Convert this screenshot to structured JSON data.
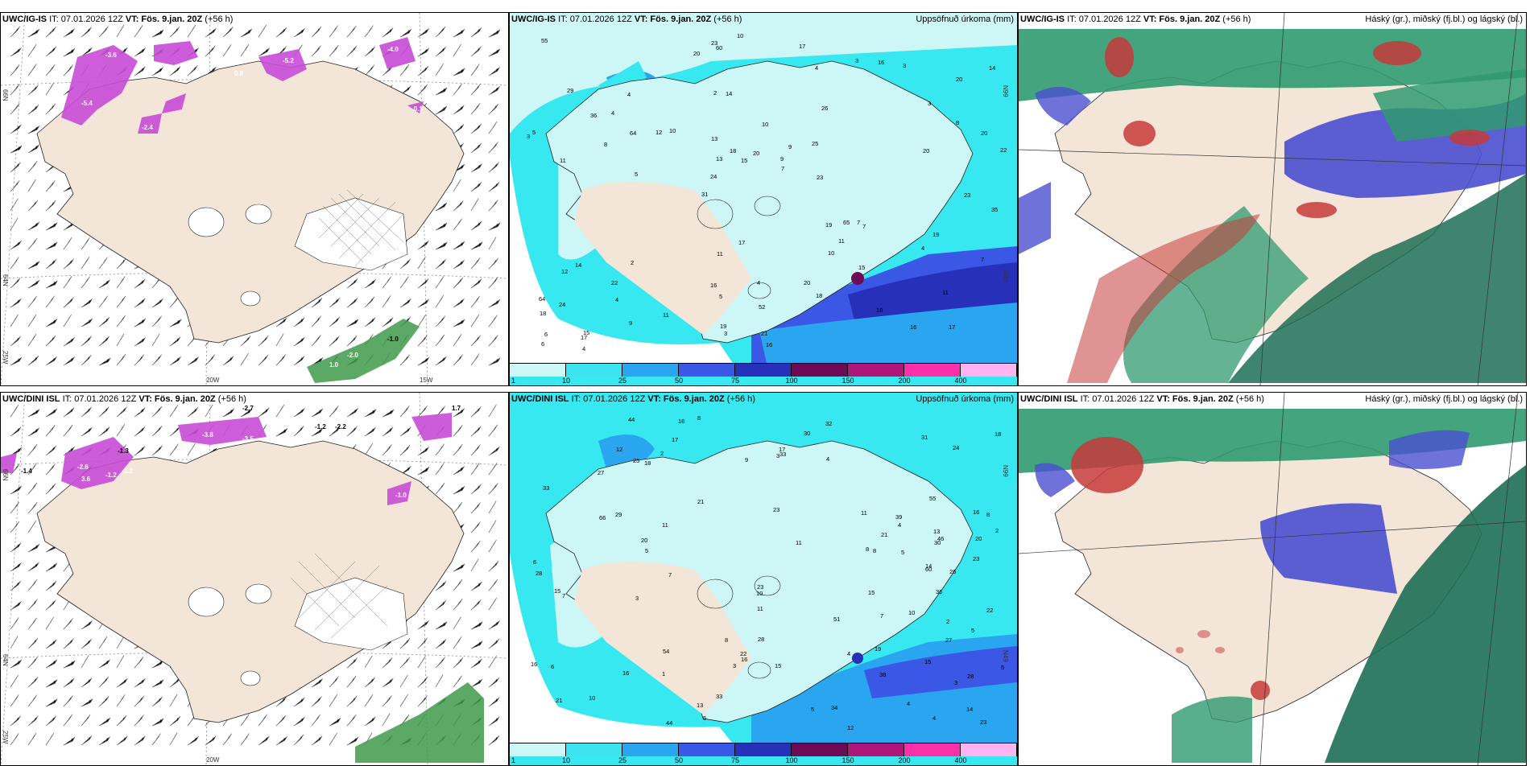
{
  "colors": {
    "land": "#f3e6d8",
    "sea_white": "#ffffff",
    "precip_light": "#cdf6f6",
    "precip_cyan": "#38e8f0",
    "precip_blue1": "#2aa6f0",
    "precip_blue2": "#3a57e6",
    "precip_navy": "#2730b8",
    "precip_maroon": "#6e0a55",
    "precip_magenta": "#b0157a",
    "precip_pink": "#ff2fa8",
    "precip_lightpink": "#ffb3f0",
    "snow_magenta": "#c84bd6",
    "rain_green": "#3e9a4a",
    "cloud_high_red": "#c63a3a",
    "cloud_mid_green": "#2f9a70",
    "cloud_low_blue": "#4a4fd0"
  },
  "panels": [
    {
      "id": "igis-wind",
      "title_model": "UWC/IG-IS",
      "title_it": "IT: 07.01.2026 12Z",
      "title_vt_label": "VT:",
      "title_vt": "Fös. 9.jan. 20Z",
      "title_lead": "(+56 h)",
      "right_title": "",
      "axis_labels": [
        "66N",
        "64N",
        "25W",
        "20W",
        "15W"
      ]
    },
    {
      "id": "igis-precip",
      "title_model": "UWC/IG-IS",
      "title_it": "IT: 07.01.2026 12Z",
      "title_vt_label": "VT:",
      "title_vt": "Fös. 9.jan. 20Z",
      "title_lead": "(+56 h)",
      "right_title": "Uppsöfnuð úrkoma (mm)",
      "axis_labels": [
        "N99",
        "N49"
      ],
      "numbers": [
        "17",
        "11",
        "20",
        "31",
        "26",
        "15",
        "2",
        "10",
        "14",
        "10",
        "18",
        "4",
        "14",
        "9",
        "7",
        "29",
        "60",
        "22",
        "19",
        "8",
        "24",
        "16",
        "13",
        "4",
        "3",
        "2",
        "16",
        "11",
        "7",
        "16",
        "12",
        "8",
        "10",
        "9",
        "20",
        "9",
        "6",
        "5",
        "7",
        "12",
        "3",
        "14",
        "11",
        "18",
        "22",
        "4",
        "6",
        "4",
        "3",
        "10",
        "5",
        "5",
        "4",
        "16",
        "17",
        "17",
        "20",
        "18",
        "7",
        "11",
        "11",
        "65",
        "64",
        "64",
        "55",
        "36",
        "35",
        "13",
        "52",
        "20",
        "24",
        "23",
        "19",
        "19",
        "20",
        "17",
        "18",
        "21",
        "20",
        "23",
        "23",
        "25",
        "15",
        "15",
        "4",
        "3",
        "3",
        "4"
      ]
    },
    {
      "id": "igis-clouds",
      "title_model": "UWC/IG-IS",
      "title_it": "IT: 07.01.2026 12Z",
      "title_vt_label": "VT:",
      "title_vt": "Fös. 9.jan. 20Z",
      "title_lead": "(+56 h)",
      "right_title": "Háský (gr.), miðský (fj.bl.) og lágský (bl.)"
    },
    {
      "id": "dini-wind",
      "title_model": "UWC/DINI ISL",
      "title_it": "IT: 07.01.2026 12Z",
      "title_vt_label": "VT:",
      "title_vt": "Fös. 9.jan. 20Z",
      "title_lead": "(+56 h)",
      "right_title": "",
      "axis_labels": [
        "66N",
        "64N",
        "25W",
        "20W"
      ]
    },
    {
      "id": "dini-precip",
      "title_model": "UWC/DINI ISL",
      "title_it": "IT: 07.01.2026 12Z",
      "title_vt_label": "VT:",
      "title_vt": "Fös. 9.jan. 20Z",
      "title_lead": "(+56 h)",
      "right_title": "Uppsöfnuð úrkoma (mm)",
      "axis_labels": [
        "N99",
        "N49"
      ],
      "numbers": [
        "15",
        "16",
        "28",
        "23",
        "21",
        "17",
        "13",
        "1",
        "24",
        "29",
        "20",
        "33",
        "14",
        "5",
        "6",
        "27",
        "3",
        "2",
        "16",
        "46",
        "15",
        "7",
        "5",
        "8",
        "13",
        "3",
        "30",
        "4",
        "11",
        "5",
        "3",
        "38",
        "44",
        "10",
        "2",
        "4",
        "8",
        "9",
        "4",
        "7",
        "10",
        "5",
        "3",
        "5",
        "5",
        "7",
        "10",
        "32",
        "11",
        "4",
        "16",
        "11",
        "33",
        "2",
        "4",
        "15",
        "16",
        "12",
        "12",
        "17",
        "8",
        "19",
        "23",
        "15",
        "25",
        "14",
        "16",
        "23",
        "39",
        "66",
        "55",
        "60",
        "54",
        "51",
        "22",
        "21",
        "44",
        "23",
        "36",
        "27",
        "34",
        "22",
        "18",
        "26",
        "33",
        "30",
        "28",
        "28",
        "31",
        "21",
        "11",
        "20",
        "18",
        "8",
        "8",
        "6"
      ]
    },
    {
      "id": "dini-clouds",
      "title_model": "UWC/DINI ISL",
      "title_it": "IT: 07.01.2026 12Z",
      "title_vt_label": "VT:",
      "title_vt": "Fös. 9.jan. 20Z",
      "title_lead": "(+56 h)",
      "right_title": "Háský (gr.), miðský (fj.bl.) og lágský (bl.)"
    }
  ],
  "colorbar": {
    "labels": [
      "1",
      "10",
      "25",
      "50",
      "75",
      "100",
      "150",
      "200",
      "400"
    ],
    "colors": [
      "#cdf6f6",
      "#3ee3f0",
      "#2aa6f0",
      "#3a57e6",
      "#2730b8",
      "#6e0a55",
      "#b0157a",
      "#ff2fa8",
      "#ffb3f0"
    ]
  },
  "wind_panel_values_top": [
    "-3.6",
    "-5.2",
    "-4.0",
    "-5.4",
    "0.8",
    "-0.1",
    "-2.4",
    "-1.0",
    "1.0",
    "-2.0"
  ],
  "wind_panel_values_bottom": [
    "-1.5",
    "-3.8",
    "-1.3",
    "-3.5",
    "-1.1",
    "-1.2",
    "-2.2",
    "-1.4",
    "-2.6",
    "-2.7",
    "-1.0",
    "-1.2",
    "3.6",
    "-1.2",
    "1.7"
  ]
}
